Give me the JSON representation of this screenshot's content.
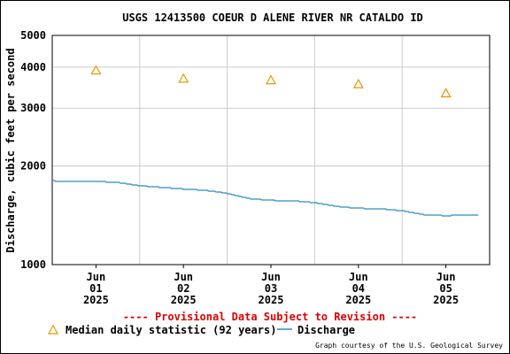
{
  "chart_data": {
    "type": "line",
    "title": "USGS 12413500 COEUR D ALENE RIVER NR CATALDO ID",
    "ylabel": "Discharge, cubic feet per second",
    "xlabel": "",
    "y_scale": "log",
    "ylim": [
      1000,
      5000
    ],
    "y_ticks": [
      "1000",
      "2000",
      "3000",
      "4000",
      "5000"
    ],
    "y_tick_values": [
      1000,
      2000,
      3000,
      4000,
      5000
    ],
    "xlim": [
      "2025-05-31 12:00",
      "2025-06-05 12:00"
    ],
    "x_ticks": [
      {
        "month": "Jun",
        "day": "01",
        "year": "2025",
        "date": "2025-06-01"
      },
      {
        "month": "Jun",
        "day": "02",
        "year": "2025",
        "date": "2025-06-02"
      },
      {
        "month": "Jun",
        "day": "03",
        "year": "2025",
        "date": "2025-06-03"
      },
      {
        "month": "Jun",
        "day": "04",
        "year": "2025",
        "date": "2025-06-04"
      },
      {
        "month": "Jun",
        "day": "05",
        "year": "2025",
        "date": "2025-06-05"
      }
    ],
    "grid": true,
    "series": [
      {
        "name": "Discharge",
        "color": "#2c8cc0",
        "points": [
          [
            "2025-05-31 12:00",
            1800
          ],
          [
            "2025-05-31 18:00",
            1790
          ],
          [
            "2025-06-01 00:00",
            1795
          ],
          [
            "2025-06-01 06:00",
            1780
          ],
          [
            "2025-06-01 12:00",
            1740
          ],
          [
            "2025-06-01 18:00",
            1720
          ],
          [
            "2025-06-02 00:00",
            1700
          ],
          [
            "2025-06-02 06:00",
            1685
          ],
          [
            "2025-06-02 12:00",
            1650
          ],
          [
            "2025-06-02 18:00",
            1590
          ],
          [
            "2025-06-03 00:00",
            1570
          ],
          [
            "2025-06-03 06:00",
            1565
          ],
          [
            "2025-06-03 12:00",
            1545
          ],
          [
            "2025-06-03 18:00",
            1505
          ],
          [
            "2025-06-04 00:00",
            1485
          ],
          [
            "2025-06-04 06:00",
            1480
          ],
          [
            "2025-06-04 12:00",
            1460
          ],
          [
            "2025-06-04 18:00",
            1420
          ],
          [
            "2025-06-05 00:00",
            1410
          ],
          [
            "2025-06-05 06:00",
            1418
          ],
          [
            "2025-06-05 09:00",
            1412
          ]
        ]
      },
      {
        "name": "Median daily statistic (92 years)",
        "marker": "triangle",
        "color": "#e69800",
        "points": [
          [
            "2025-06-01",
            3910
          ],
          [
            "2025-06-02",
            3690
          ],
          [
            "2025-06-03",
            3650
          ],
          [
            "2025-06-04",
            3550
          ],
          [
            "2025-06-05",
            3330
          ]
        ]
      }
    ],
    "legend_position": "bottom-left"
  },
  "banner": {
    "text": "---- Provisional Data Subject to Revision ----",
    "color": "#dd0000"
  },
  "credit": "Graph courtesy of the U.S. Geological Survey"
}
